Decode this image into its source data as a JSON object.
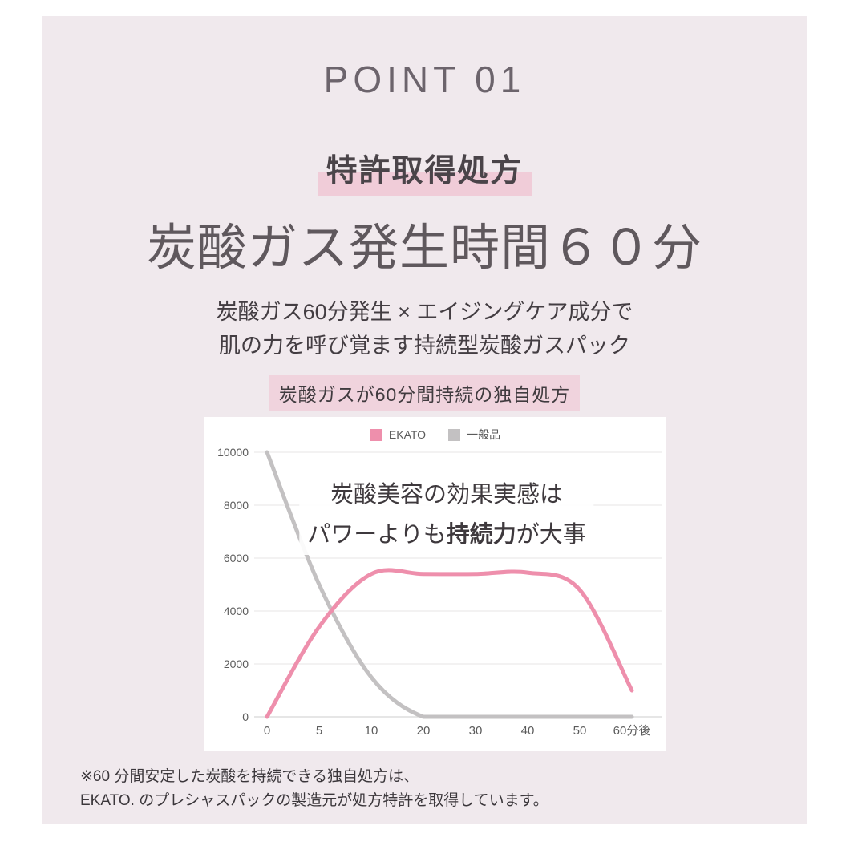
{
  "header": {
    "point_label": "POINT 01"
  },
  "hero": {
    "badge": "特許取得処方",
    "title": "炭酸ガス発生時間６０分",
    "subtitle_line1": "炭酸ガス60分発生 × エイジングケア成分で",
    "subtitle_line2": "肌の力を呼び覚ます持続型炭酸ガスパック",
    "chart_caption": "炭酸ガスが60分間持続の独自処方"
  },
  "footnote": {
    "line1": "※60 分間安定した炭酸を持続できる独自処方は、",
    "line2": "EKATO. のプレシャスパックの製造元が処方特許を取得しています。"
  },
  "chart_data": {
    "type": "line",
    "categories": [
      "0",
      "5",
      "10",
      "20",
      "30",
      "40",
      "50",
      "60分後"
    ],
    "series": [
      {
        "name": "EKATO",
        "color": "#ee8fac",
        "values": [
          0,
          3400,
          5400,
          5400,
          5400,
          5450,
          4800,
          1000
        ]
      },
      {
        "name": "一般品",
        "color": "#c3c1c2",
        "values": [
          10000,
          5000,
          1500,
          0,
          0,
          0,
          0,
          0
        ]
      }
    ],
    "yticks": [
      0,
      2000,
      4000,
      6000,
      8000,
      10000
    ],
    "ylim": [
      0,
      10000
    ],
    "grid": true,
    "legend_position": "top-center",
    "annotation": {
      "line1": "炭酸美容の効果実感は",
      "line2_pre": "パワーよりも",
      "line2_bold": "持続力",
      "line2_post": "が大事"
    }
  },
  "colors": {
    "panel_bg": "#f0e9ed",
    "highlight_pink": "#f0ccd8",
    "caption_bg": "#f0d3dd",
    "card_bg": "#ffffff",
    "accent_pink": "#ee8fac",
    "generic_gray": "#c3c1c2"
  }
}
